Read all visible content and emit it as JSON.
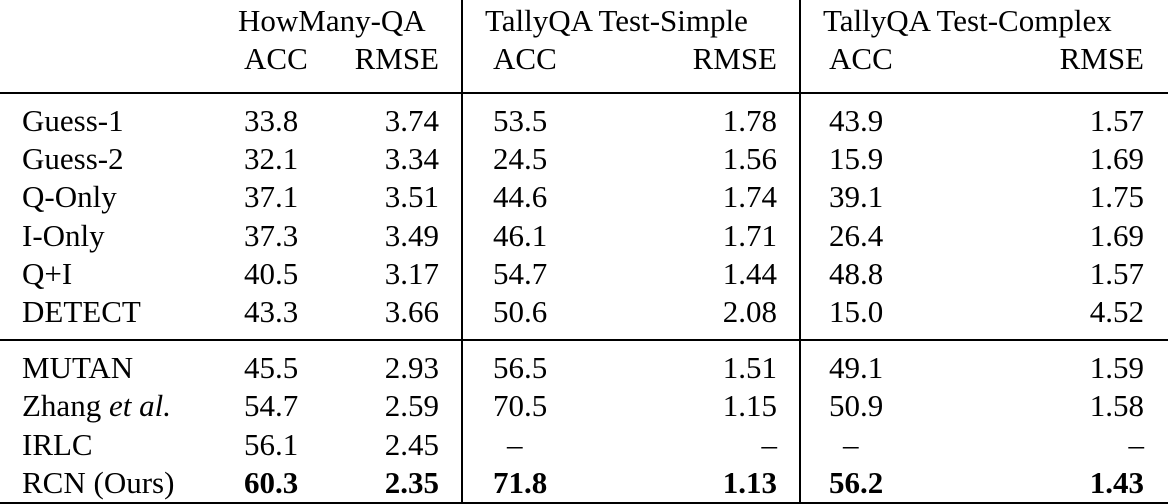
{
  "header": {
    "groups": [
      "HowMany-QA",
      "TallyQA Test-Simple",
      "TallyQA Test-Complex"
    ],
    "acc_label": "ACC",
    "rmse_label": "RMSE"
  },
  "baselines": [
    {
      "method": "Guess-1",
      "hm_acc": "33.8",
      "hm_rmse": "3.74",
      "ts_acc": "53.5",
      "ts_rmse": "1.78",
      "tc_acc": "43.9",
      "tc_rmse": "1.57"
    },
    {
      "method": "Guess-2",
      "hm_acc": "32.1",
      "hm_rmse": "3.34",
      "ts_acc": "24.5",
      "ts_rmse": "1.56",
      "tc_acc": "15.9",
      "tc_rmse": "1.69"
    },
    {
      "method": "Q-Only",
      "hm_acc": "37.1",
      "hm_rmse": "3.51",
      "ts_acc": "44.6",
      "ts_rmse": "1.74",
      "tc_acc": "39.1",
      "tc_rmse": "1.75"
    },
    {
      "method": "I-Only",
      "hm_acc": "37.3",
      "hm_rmse": "3.49",
      "ts_acc": "46.1",
      "ts_rmse": "1.71",
      "tc_acc": "26.4",
      "tc_rmse": "1.69"
    },
    {
      "method": "Q+I",
      "hm_acc": "40.5",
      "hm_rmse": "3.17",
      "ts_acc": "54.7",
      "ts_rmse": "1.44",
      "tc_acc": "48.8",
      "tc_rmse": "1.57"
    },
    {
      "method": "DETECT",
      "hm_acc": "43.3",
      "hm_rmse": "3.66",
      "ts_acc": "50.6",
      "ts_rmse": "2.08",
      "tc_acc": "15.0",
      "tc_rmse": "4.52"
    }
  ],
  "methods": [
    {
      "method": "MUTAN",
      "hm_acc": "45.5",
      "hm_rmse": "2.93",
      "ts_acc": "56.5",
      "ts_rmse": "1.51",
      "tc_acc": "49.1",
      "tc_rmse": "1.59"
    },
    {
      "method_a": "Zhang ",
      "method_b": "et al.",
      "hm_acc": "54.7",
      "hm_rmse": "2.59",
      "ts_acc": "70.5",
      "ts_rmse": "1.15",
      "tc_acc": "50.9",
      "tc_rmse": "1.58"
    },
    {
      "method": "IRLC",
      "hm_acc": "56.1",
      "hm_rmse": "2.45",
      "ts_acc": "–",
      "ts_rmse": "–",
      "tc_acc": "–",
      "tc_rmse": "–"
    },
    {
      "method": "RCN (Ours)",
      "hm_acc": "60.3",
      "hm_rmse": "2.35",
      "ts_acc": "71.8",
      "ts_rmse": "1.13",
      "tc_acc": "56.2",
      "tc_rmse": "1.43"
    }
  ]
}
